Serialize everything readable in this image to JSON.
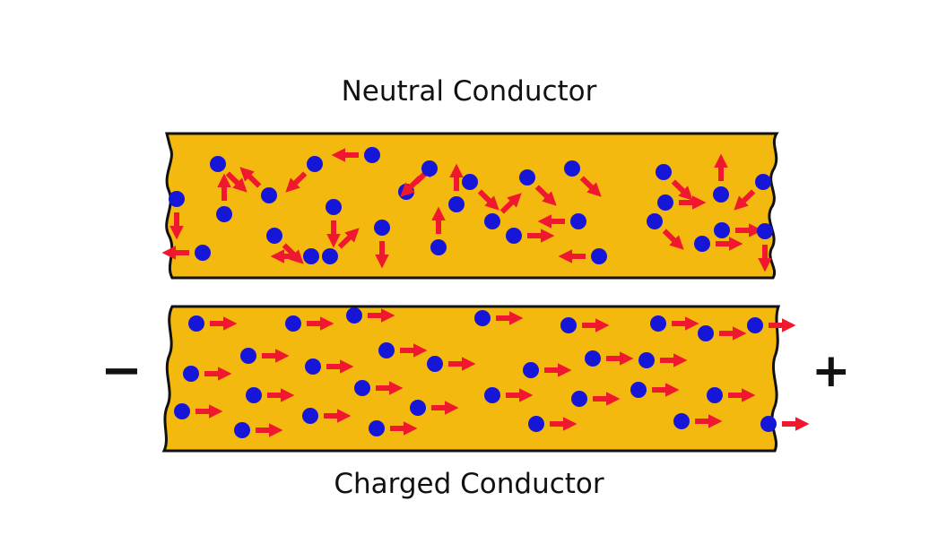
{
  "labels": {
    "neutral": "Neutral Conductor",
    "charged": "Charged Conductor",
    "negative_terminal": "−",
    "positive_terminal": "+"
  },
  "colors": {
    "conductor_fill": "#F4B90F",
    "conductor_stroke": "#111111",
    "electron": "#1616D8",
    "arrow": "#F0182E"
  },
  "neutral_electrons": [
    {
      "d": "down-right"
    },
    {
      "d": "up-left"
    },
    {
      "d": "down-left"
    },
    {
      "d": "left"
    },
    {
      "d": "up"
    },
    {
      "d": "down-right"
    },
    {
      "d": "down"
    },
    {
      "d": "up-right"
    },
    {
      "d": "left"
    },
    {
      "d": "up-right"
    },
    {
      "d": "down-left"
    },
    {
      "d": "up"
    },
    {
      "d": "down"
    },
    {
      "d": "up"
    },
    {
      "d": "down-right"
    },
    {
      "d": "up-right"
    },
    {
      "d": "right"
    },
    {
      "d": "down-right"
    },
    {
      "d": "left"
    },
    {
      "d": "down-right"
    },
    {
      "d": "left"
    },
    {
      "d": "down-right"
    },
    {
      "d": "right"
    },
    {
      "d": "right"
    },
    {
      "d": "down-right"
    },
    {
      "d": "up"
    },
    {
      "d": "right"
    },
    {
      "d": "down"
    },
    {
      "d": "down-left"
    },
    {
      "d": "down"
    },
    {
      "d": "left"
    }
  ],
  "charged_electrons": {
    "direction": "right",
    "count": 36
  }
}
